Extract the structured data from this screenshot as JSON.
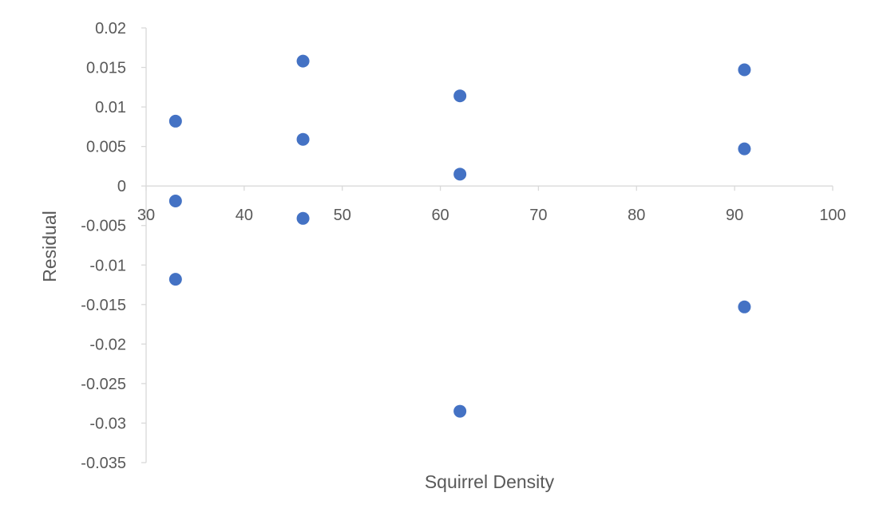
{
  "chart_data": {
    "type": "scatter",
    "title": "",
    "xlabel": "Squirrel Density",
    "ylabel": "Residual",
    "xlim": [
      30,
      100
    ],
    "ylim": [
      -0.035,
      0.02
    ],
    "x_ticks": [
      30,
      40,
      50,
      60,
      70,
      80,
      90,
      100
    ],
    "y_ticks": [
      0.02,
      0.015,
      0.01,
      0.005,
      0,
      -0.005,
      -0.01,
      -0.015,
      -0.02,
      -0.025,
      -0.03,
      -0.035
    ],
    "x_tick_labels": [
      "30",
      "40",
      "50",
      "60",
      "70",
      "80",
      "90",
      "100"
    ],
    "y_tick_labels": [
      "0.02",
      "0.015",
      "0.01",
      "0.005",
      "0",
      "-0.005",
      "-0.01",
      "-0.015",
      "-0.02",
      "-0.025",
      "-0.03",
      "-0.035"
    ],
    "grid": false,
    "legend": false,
    "marker_color": "#4472C4",
    "axis_color": "#D9D9D9",
    "text_color": "#595959",
    "points": [
      {
        "x": 33,
        "y": 0.0082
      },
      {
        "x": 33,
        "y": -0.0019
      },
      {
        "x": 33,
        "y": -0.0118
      },
      {
        "x": 46,
        "y": 0.0158
      },
      {
        "x": 46,
        "y": 0.0059
      },
      {
        "x": 46,
        "y": -0.0041
      },
      {
        "x": 62,
        "y": 0.0114
      },
      {
        "x": 62,
        "y": 0.0015
      },
      {
        "x": 62,
        "y": -0.0285
      },
      {
        "x": 91,
        "y": 0.0147
      },
      {
        "x": 91,
        "y": 0.0047
      },
      {
        "x": 91,
        "y": -0.0153
      }
    ]
  }
}
